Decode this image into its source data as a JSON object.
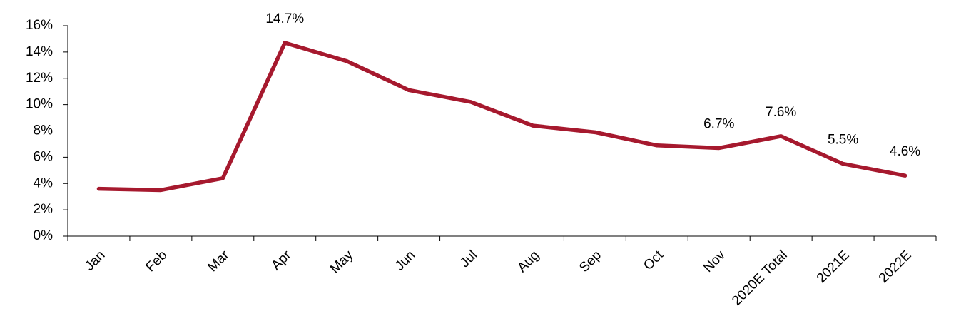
{
  "chart_data": {
    "type": "line",
    "categories": [
      "Jan",
      "Feb",
      "Mar",
      "Apr",
      "May",
      "Jun",
      "Jul",
      "Aug",
      "Sep",
      "Oct",
      "Nov",
      "2020E Total",
      "2021E",
      "2022E"
    ],
    "values": [
      3.6,
      3.5,
      4.4,
      14.7,
      13.3,
      11.1,
      10.2,
      8.4,
      7.9,
      6.9,
      6.7,
      7.6,
      5.5,
      4.6
    ],
    "value_labels": [
      null,
      null,
      null,
      "14.7%",
      null,
      null,
      null,
      null,
      null,
      null,
      "6.7%",
      "7.6%",
      "5.5%",
      "4.6%"
    ],
    "color": "#a6192e",
    "ylim": [
      0,
      16
    ],
    "yticks": [
      {
        "value": 0,
        "label": "0%"
      },
      {
        "value": 2,
        "label": "2%"
      },
      {
        "value": 4,
        "label": "4%"
      },
      {
        "value": 6,
        "label": "6%"
      },
      {
        "value": 8,
        "label": "8%"
      },
      {
        "value": 10,
        "label": "10%"
      },
      {
        "value": 12,
        "label": "12%"
      },
      {
        "value": 14,
        "label": "14%"
      },
      {
        "value": 16,
        "label": "16%"
      }
    ],
    "grid": false
  }
}
